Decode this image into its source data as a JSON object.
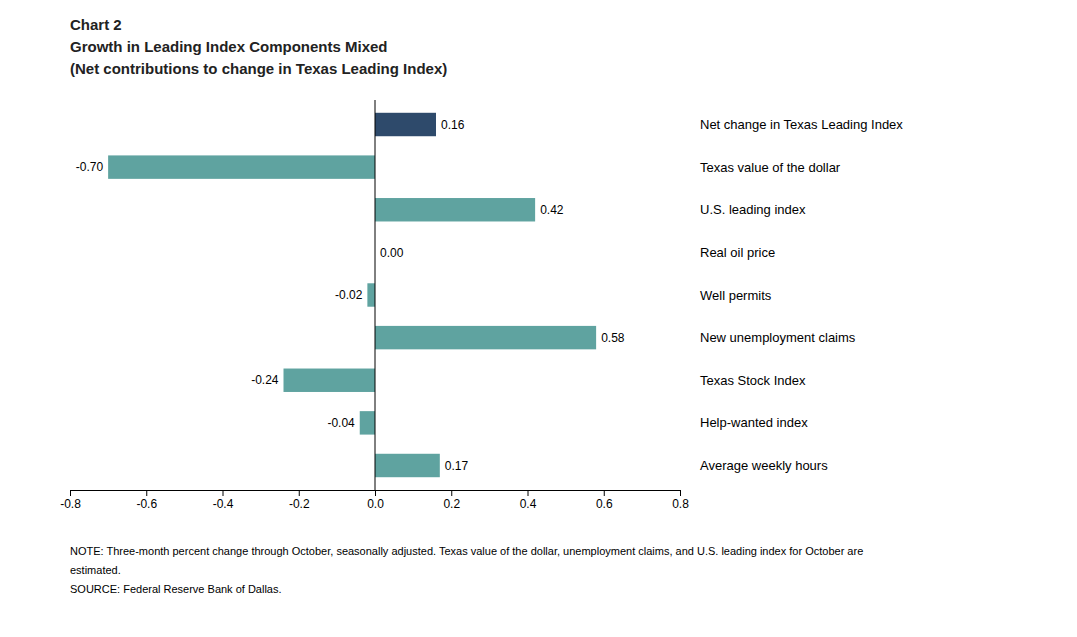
{
  "chart_data": {
    "type": "bar",
    "orientation": "horizontal",
    "title": [
      "Chart 2",
      "Growth in Leading Index Components Mixed",
      "(Net contributions to change in Texas Leading Index)"
    ],
    "categories": [
      "Net change in Texas Leading Index",
      "Texas value of the dollar",
      "U.S. leading index",
      "Real oil price",
      "Well permits",
      "New unemployment claims",
      "Texas Stock Index",
      "Help-wanted index",
      "Average weekly hours"
    ],
    "values": [
      0.16,
      -0.7,
      0.42,
      0.0,
      -0.02,
      0.58,
      -0.24,
      -0.04,
      0.17
    ],
    "value_labels": [
      "0.16",
      "-0.70",
      "0.42",
      "0.00",
      "-0.02",
      "0.58",
      "-0.24",
      "-0.04",
      "0.17"
    ],
    "colors": [
      "#2e4a6b",
      "#5fa3a0",
      "#5fa3a0",
      "#5fa3a0",
      "#5fa3a0",
      "#5fa3a0",
      "#5fa3a0",
      "#5fa3a0",
      "#5fa3a0"
    ],
    "xlim": [
      -0.8,
      0.8
    ],
    "xticks": [
      -0.8,
      -0.6,
      -0.4,
      -0.2,
      {
        "value": 0,
        "label": "0.0"
      },
      0.2,
      0.4,
      0.6,
      0.8
    ],
    "data_labels": true,
    "grid": false,
    "annotations": [
      "NOTE:  Three-month percent change through October, seasonally adjusted. Texas value of the dollar, unemployment claims, and U.S. leading index for October are",
      "estimated.",
      "SOURCE:  Federal Reserve Bank of Dallas."
    ]
  }
}
